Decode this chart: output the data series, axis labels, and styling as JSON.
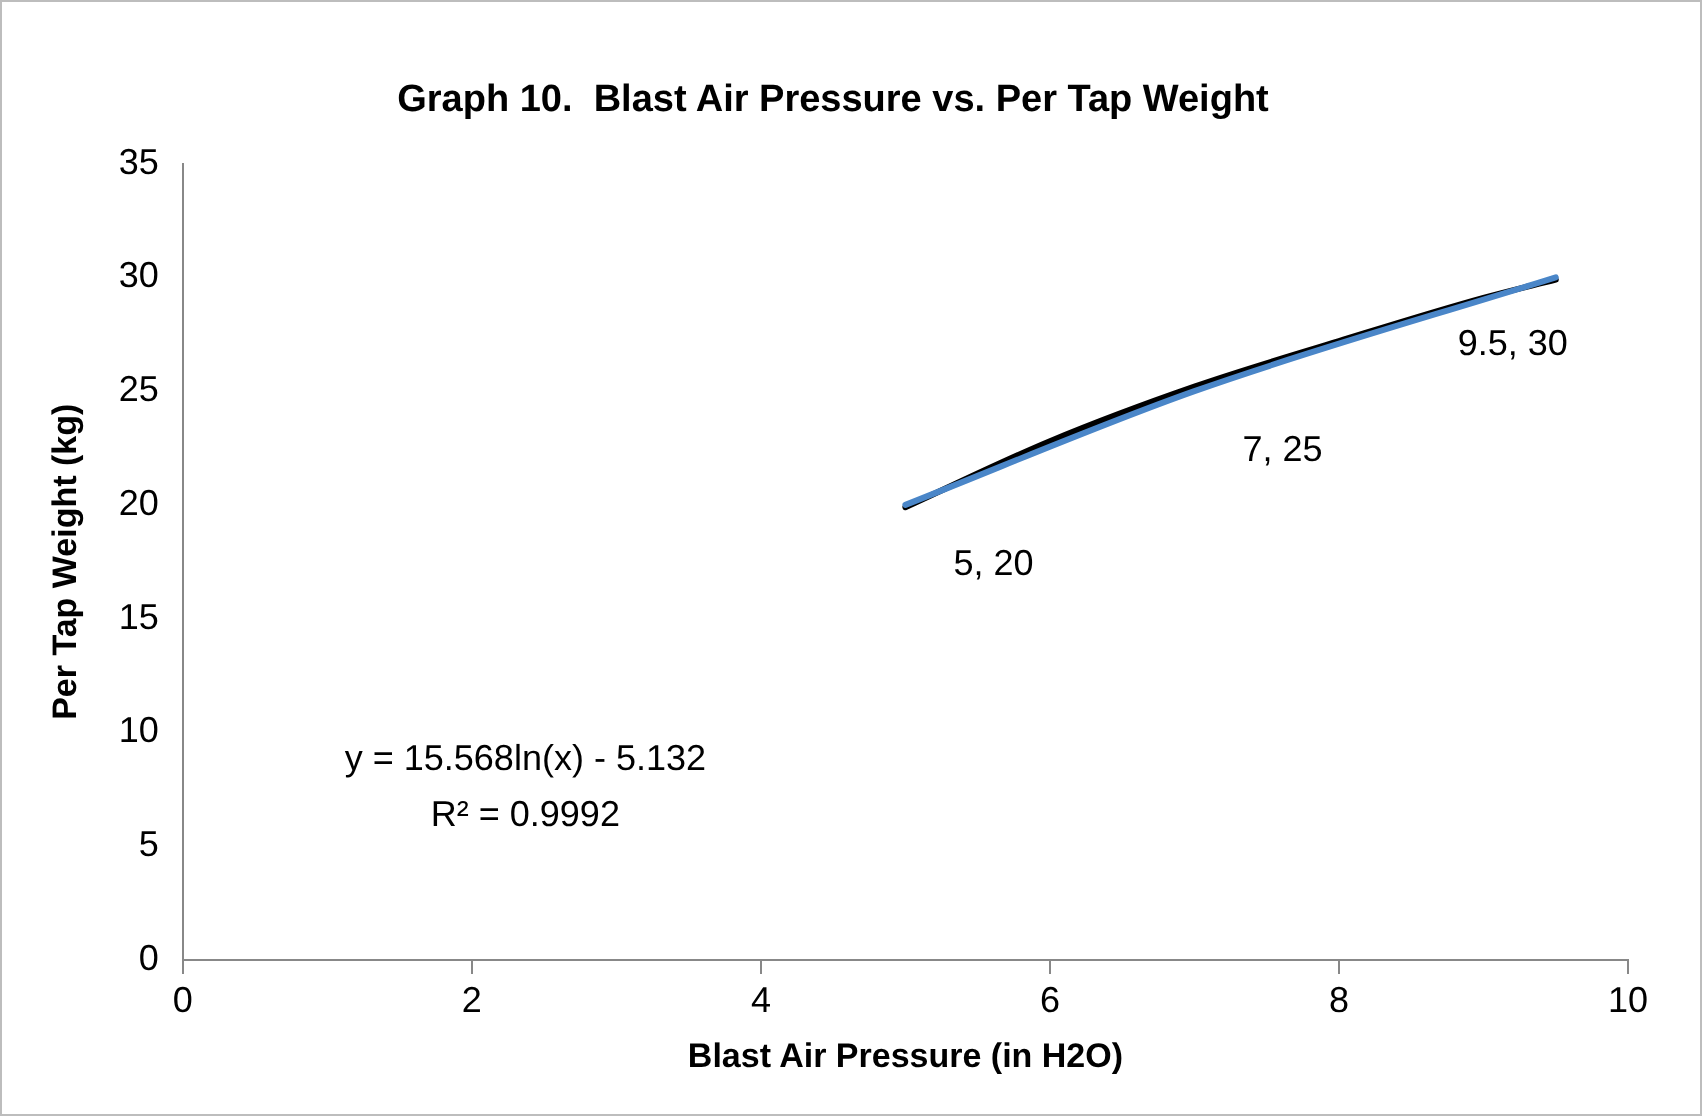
{
  "chart_data": {
    "type": "line",
    "title": "Graph 10.  Blast Air Pressure vs. Per Tap Weight",
    "xlabel": "Blast Air Pressure (in H2O)",
    "ylabel": "Per Tap Weight (kg)",
    "x": [
      5,
      7,
      9.5
    ],
    "series": [
      {
        "type": "line",
        "color": "#4a86c8",
        "values": [
          20,
          25,
          30
        ],
        "value_labels": [
          "5, 20",
          "7, 25",
          "9.5, 30"
        ]
      },
      {
        "type": "line",
        "color": "#000000",
        "x": [
          5,
          6,
          7,
          8,
          9,
          9.5
        ],
        "values": [
          19.9,
          22.8,
          25.2,
          27.2,
          29.1,
          29.9
        ]
      }
    ],
    "xlim": [
      0,
      10
    ],
    "xticks": [
      0,
      2,
      4,
      6,
      8,
      10
    ],
    "ylim": [
      0,
      35
    ],
    "yticks": [
      0,
      5,
      10,
      15,
      20,
      25,
      30,
      35
    ],
    "annotations": [
      "y = 15.568ln(x) - 5.132",
      "R² = 0.9992"
    ],
    "grid": false,
    "legend": false,
    "marker": "none",
    "line_style": "solid"
  }
}
